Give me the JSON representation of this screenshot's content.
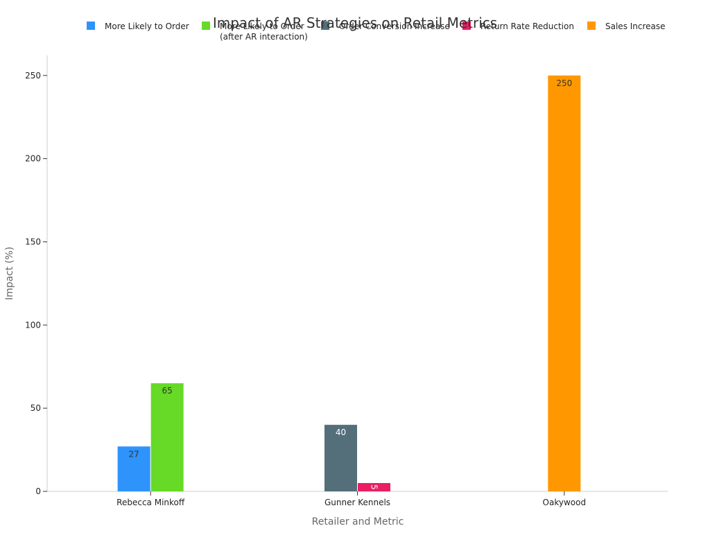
{
  "chart_data": {
    "type": "bar",
    "title": "Impact of AR Strategies on Retail Metrics",
    "xlabel": "Retailer and Metric",
    "ylabel": "Impact (%)",
    "ylim": [
      0,
      262
    ],
    "yticks": [
      0,
      50,
      100,
      150,
      200,
      250
    ],
    "grid": false,
    "legend_position": "top",
    "categories": [
      "Rebecca Minkoff",
      "Gunner Kennels",
      "Oakywood"
    ],
    "series": [
      {
        "name": "More Likely to Order",
        "color": "#2e93fa",
        "label_color": "#333333",
        "values": [
          27,
          null,
          null
        ]
      },
      {
        "name": "More Likely to Order\n(after AR interaction)",
        "color": "#66da26",
        "label_color": "#333333",
        "values": [
          65,
          null,
          null
        ]
      },
      {
        "name": "Order Conversion Increase",
        "color": "#546e7a",
        "label_color": "#ffffff",
        "values": [
          null,
          40,
          null
        ]
      },
      {
        "name": "Return Rate Reduction",
        "color": "#e91e63",
        "label_color": "#ffffff",
        "values": [
          null,
          5,
          null
        ]
      },
      {
        "name": "Sales Increase",
        "color": "#ff9800",
        "label_color": "#333333",
        "values": [
          null,
          null,
          250
        ]
      }
    ]
  }
}
